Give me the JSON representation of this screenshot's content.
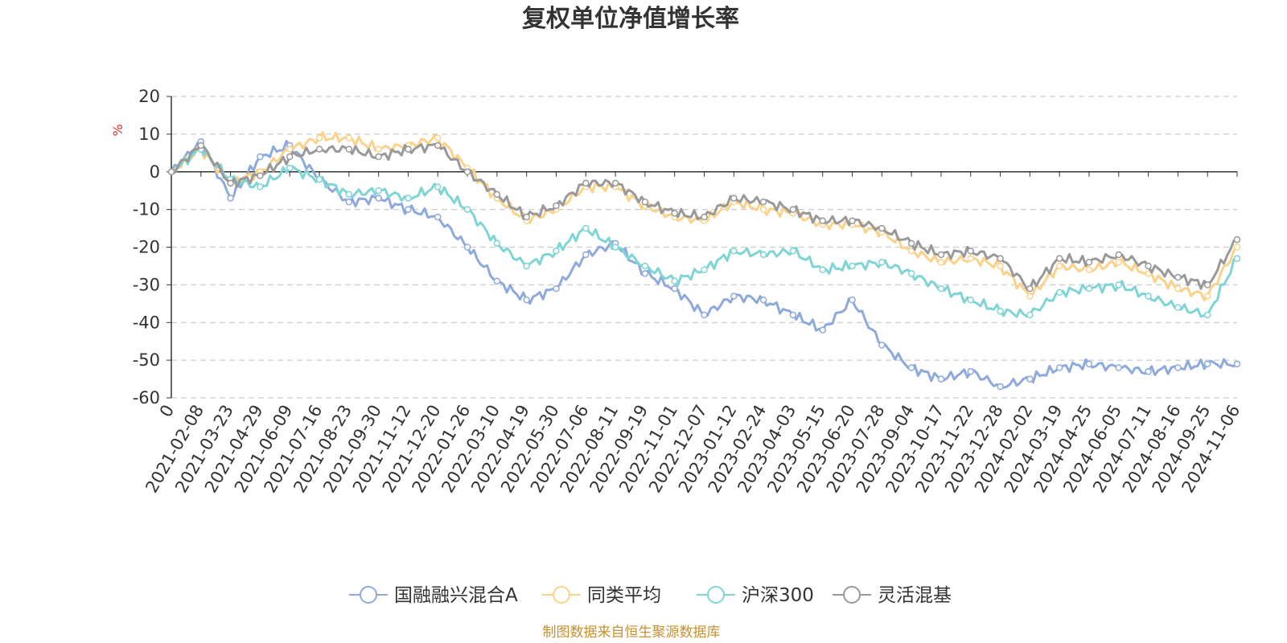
{
  "chart_data": {
    "type": "line",
    "title": "复权单位净值增长率",
    "ylabel": "%",
    "ylim": [
      -60,
      20
    ],
    "yticks": [
      "20",
      "10",
      "0",
      "-10",
      "-20",
      "-30",
      "-40",
      "-50",
      "-60"
    ],
    "ytick_values": [
      20,
      10,
      0,
      -10,
      -20,
      -30,
      -40,
      -50,
      -60
    ],
    "x_categories": [
      "0",
      "2021-02-08",
      "2021-03-23",
      "2021-04-29",
      "2021-06-09",
      "2021-07-16",
      "2021-08-23",
      "2021-09-30",
      "2021-11-12",
      "2021-12-20",
      "2022-01-26",
      "2022-03-10",
      "2022-04-19",
      "2022-05-30",
      "2022-07-06",
      "2022-08-11",
      "2022-09-19",
      "2022-11-01",
      "2022-12-07",
      "2023-01-12",
      "2023-02-24",
      "2023-04-03",
      "2023-05-15",
      "2023-06-20",
      "2023-07-28",
      "2023-09-04",
      "2023-10-17",
      "2023-11-22",
      "2023-12-28",
      "2024-02-02",
      "2024-03-19",
      "2024-04-25",
      "2024-06-05",
      "2024-07-11",
      "2024-08-16",
      "2024-09-25",
      "2024-11-06"
    ],
    "grid": "horizontal-dashed",
    "legend_position": "bottom-center",
    "series": [
      {
        "name": "国融融兴混合A",
        "color": "#8eaadc",
        "values": [
          0,
          8,
          -7,
          4,
          7,
          -2,
          -8,
          -7,
          -10,
          -12,
          -20,
          -29,
          -34,
          -31,
          -22,
          -19,
          -27,
          -31,
          -38,
          -33,
          -34,
          -38,
          -42,
          -34,
          -46,
          -52,
          -55,
          -53,
          -57,
          -55,
          -52,
          -51,
          -52,
          -53,
          -52,
          -51,
          -51
        ]
      },
      {
        "name": "同类平均",
        "color": "#fcd28a",
        "values": [
          0,
          6,
          -3,
          0,
          6,
          9,
          9,
          6,
          7,
          9,
          1,
          -7,
          -13,
          -10,
          -4,
          -4,
          -9,
          -12,
          -13,
          -8,
          -10,
          -11,
          -14,
          -14,
          -16,
          -21,
          -24,
          -23,
          -25,
          -33,
          -25,
          -26,
          -24,
          -27,
          -31,
          -33,
          -20
        ]
      },
      {
        "name": "沪深300",
        "color": "#7fd4d6",
        "values": [
          0,
          6,
          -2,
          -4,
          1,
          -2,
          -6,
          -5,
          -7,
          -4,
          -10,
          -19,
          -25,
          -21,
          -15,
          -20,
          -25,
          -29,
          -26,
          -21,
          -22,
          -21,
          -26,
          -25,
          -24,
          -27,
          -31,
          -34,
          -37,
          -38,
          -32,
          -31,
          -30,
          -33,
          -36,
          -38,
          -23
        ]
      },
      {
        "name": "灵活混基",
        "color": "#999999",
        "values": [
          0,
          7,
          -3,
          -1,
          4,
          6,
          6,
          4,
          6,
          7,
          0,
          -6,
          -12,
          -9,
          -3,
          -3,
          -8,
          -11,
          -12,
          -7,
          -8,
          -10,
          -13,
          -13,
          -15,
          -19,
          -22,
          -21,
          -23,
          -31,
          -23,
          -24,
          -22,
          -25,
          -28,
          -30,
          -18
        ]
      }
    ]
  },
  "source": "制图数据来自恒生聚源数据库"
}
